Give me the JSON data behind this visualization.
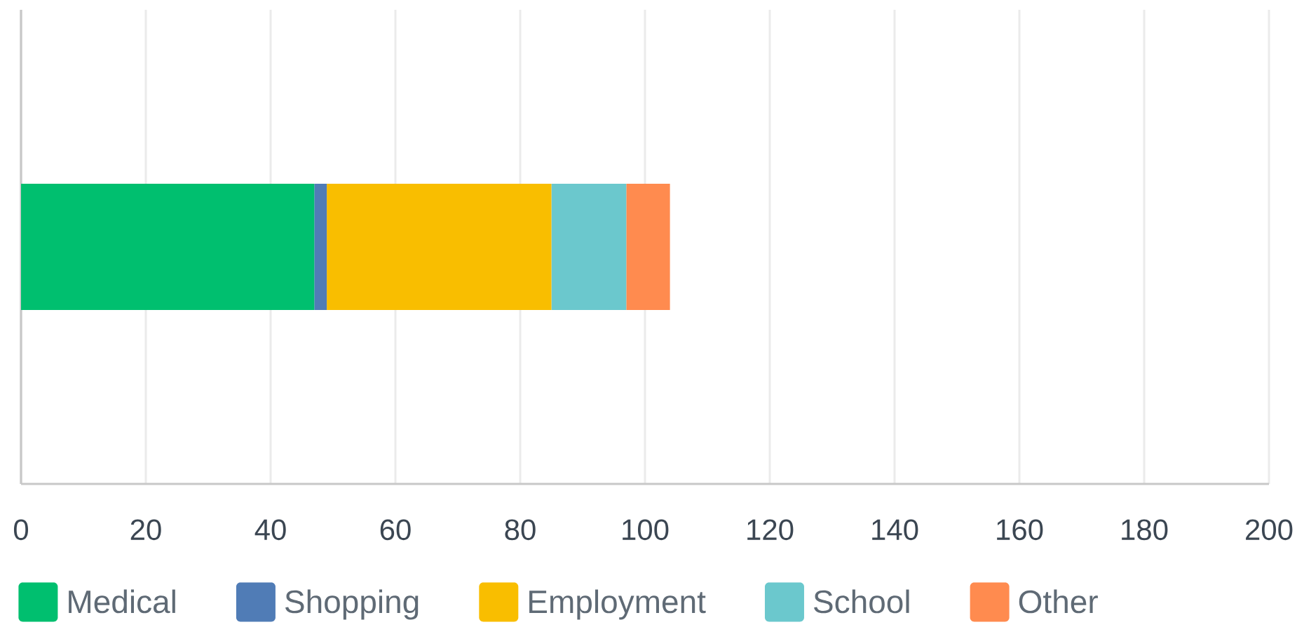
{
  "chart_data": {
    "type": "bar",
    "orientation": "horizontal",
    "stacked": true,
    "categories": [
      null
    ],
    "series": [
      {
        "name": "Medical",
        "color": "#00bf6f",
        "values": [
          47
        ]
      },
      {
        "name": "Shopping",
        "color": "#507cb6",
        "values": [
          2
        ]
      },
      {
        "name": "Employment",
        "color": "#f9be00",
        "values": [
          36
        ]
      },
      {
        "name": "School",
        "color": "#6bc8cd",
        "values": [
          12
        ]
      },
      {
        "name": "Other",
        "color": "#ff8b4f",
        "values": [
          7
        ]
      }
    ],
    "xlim": [
      0,
      200
    ],
    "xticks": [
      0,
      20,
      40,
      60,
      80,
      100,
      120,
      140,
      160,
      180,
      200
    ],
    "grid": "x",
    "legend": "bottom"
  }
}
